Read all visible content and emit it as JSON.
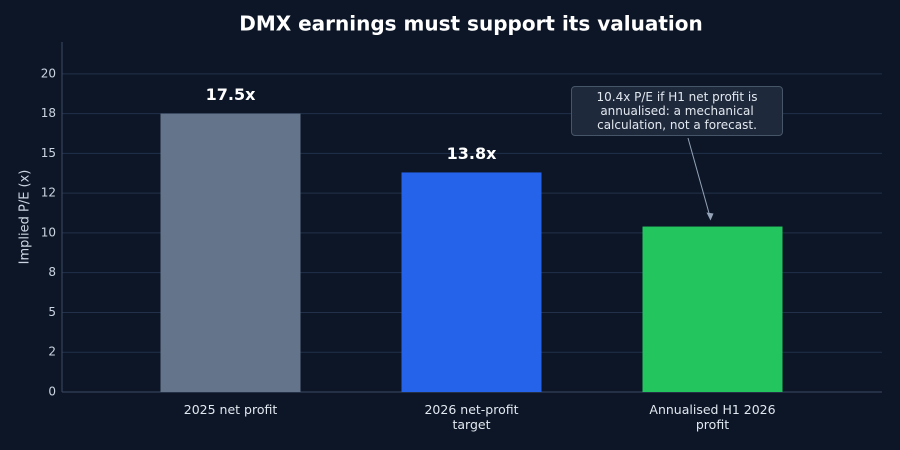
{
  "chart_data": {
    "type": "bar",
    "title": "DMX earnings must support its valuation",
    "y_label": "Implied P/E (x)",
    "categories": [
      "2025 net profit",
      "2026 net-profit target",
      "Annualised H1 2026 profit"
    ],
    "values": [
      17.5,
      13.8,
      10.4
    ],
    "value_labels": [
      "17.5x",
      "13.8x",
      null
    ],
    "colors": [
      "#64748b",
      "#2563eb",
      "#22c55e"
    ],
    "ylim": [
      0,
      22
    ],
    "yticks": [
      0,
      {
        "value": 2.5,
        "label": "2"
      },
      5,
      {
        "value": 7.5,
        "label": "8"
      },
      10,
      {
        "value": 12.5,
        "label": "12"
      },
      15,
      {
        "value": 17.5,
        "label": "18"
      },
      20
    ],
    "grid": true,
    "annotation": {
      "text": "10.4x P/E if H1 net profit is annualised: a mechanical calculation, not a forecast.",
      "target": 2
    }
  }
}
